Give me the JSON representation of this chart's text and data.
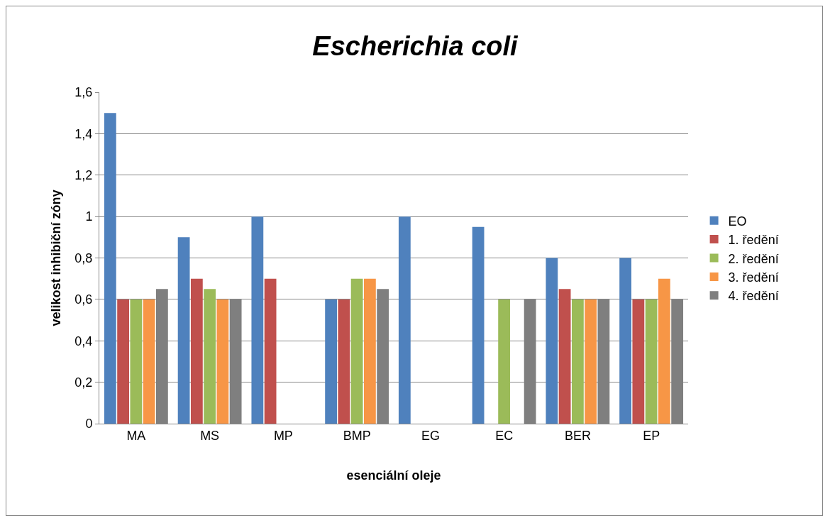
{
  "chart_data": {
    "type": "bar",
    "title": "Escherichia coli",
    "xlabel": "esenciální oleje",
    "ylabel": "velikost inhibiční zóny",
    "categories": [
      "MA",
      "MS",
      "MP",
      "BMP",
      "EG",
      "EC",
      "BER",
      "EP"
    ],
    "series": [
      {
        "name": "EO",
        "color": "#4f81bd",
        "values": [
          1.5,
          0.9,
          1.0,
          0.6,
          1.0,
          0.95,
          0.8,
          0.8
        ]
      },
      {
        "name": "1. ředění",
        "color": "#c0504d",
        "values": [
          0.6,
          0.7,
          0.7,
          0.6,
          0,
          0,
          0.65,
          0.6
        ]
      },
      {
        "name": "2. ředění",
        "color": "#9bbb59",
        "values": [
          0.6,
          0.65,
          0,
          0.7,
          0,
          0.6,
          0.6,
          0.6
        ]
      },
      {
        "name": "3. ředění",
        "color": "#f79646",
        "values": [
          0.6,
          0.6,
          0,
          0.7,
          0,
          0,
          0.6,
          0.7
        ]
      },
      {
        "name": "4. ředění",
        "color": "#7f7f7f",
        "values": [
          0.65,
          0.6,
          0,
          0.65,
          0,
          0.6,
          0.6,
          0.6
        ]
      }
    ],
    "ylim": [
      0,
      1.6
    ],
    "yticks": [
      0,
      {
        "value": 0.2,
        "label": "0,2"
      },
      {
        "value": 0.4,
        "label": "0,4"
      },
      {
        "value": 0.6,
        "label": "0,6"
      },
      {
        "value": 0.8,
        "label": "0,8"
      },
      1,
      {
        "value": 1.2,
        "label": "1,2"
      },
      {
        "value": 1.4,
        "label": "1,4"
      },
      {
        "value": 1.6,
        "label": "1,6"
      }
    ],
    "grid": "y",
    "legend": "right"
  }
}
